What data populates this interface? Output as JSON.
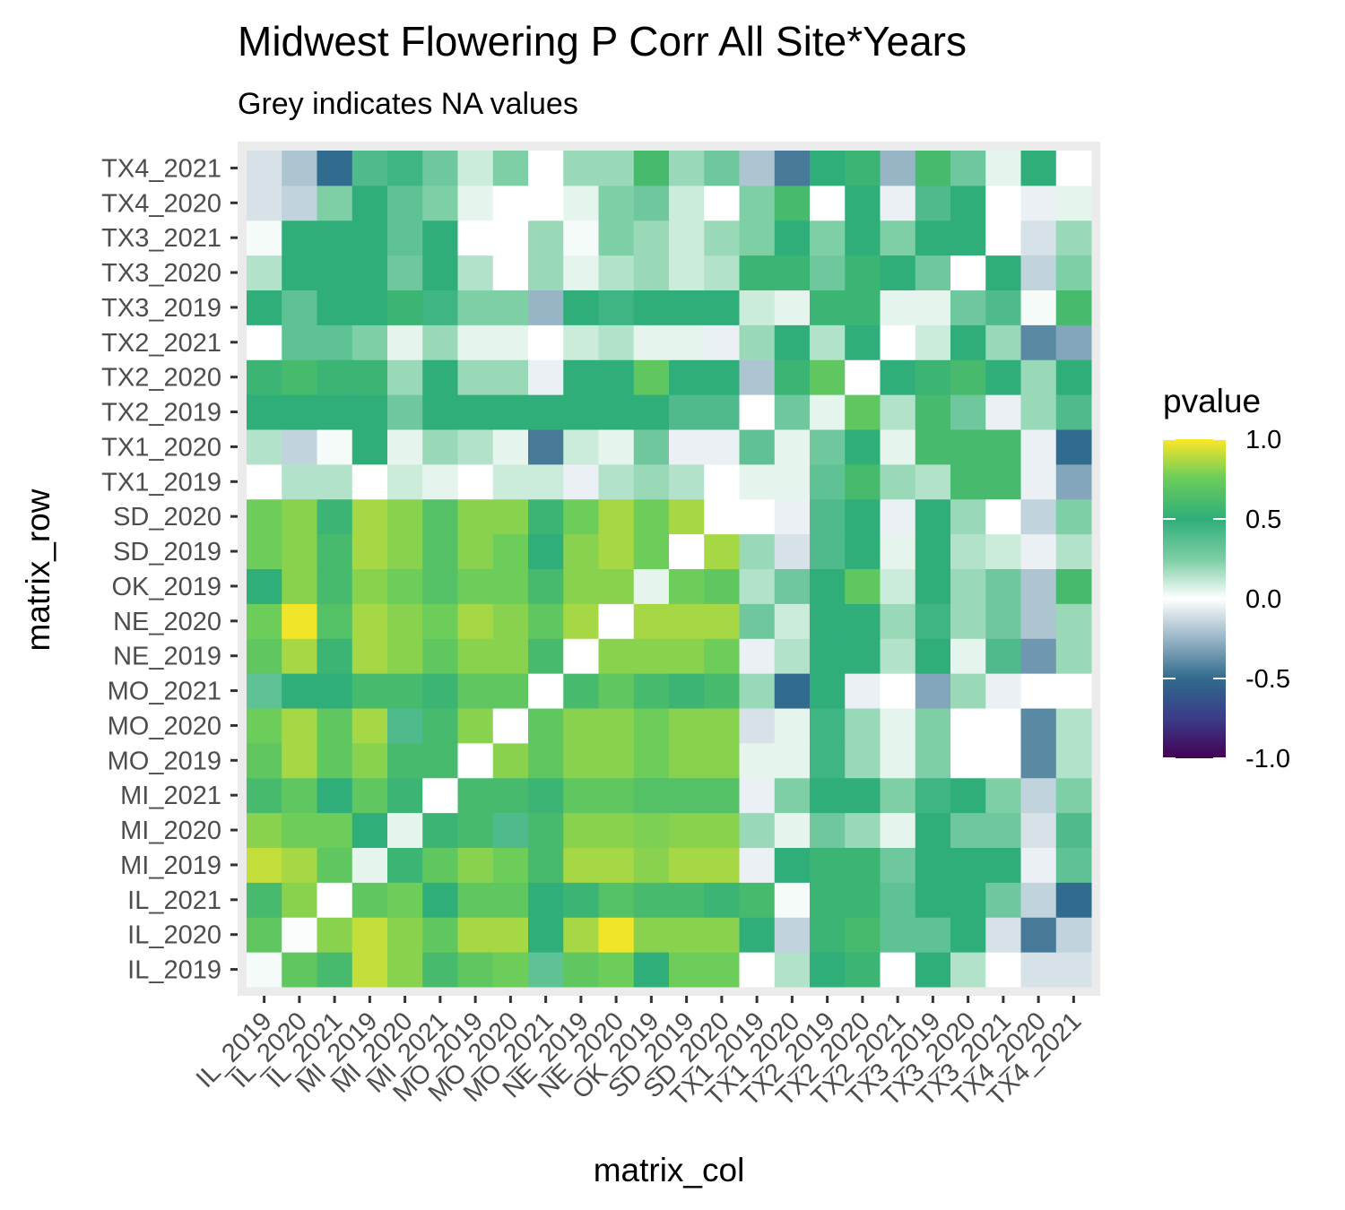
{
  "chart_data": {
    "type": "heatmap",
    "title": "Midwest Flowering P Corr All Site*Years",
    "subtitle": "Grey indicates NA values",
    "xlabel": "matrix_col",
    "ylabel": "matrix_row",
    "rows": [
      "IL_2019",
      "IL_2020",
      "IL_2021",
      "MI_2019",
      "MI_2020",
      "MI_2021",
      "MO_2019",
      "MO_2020",
      "MO_2021",
      "NE_2019",
      "NE_2020",
      "OK_2019",
      "SD_2019",
      "SD_2020",
      "TX1_2019",
      "TX1_2020",
      "TX2_2019",
      "TX2_2020",
      "TX2_2021",
      "TX3_2019",
      "TX3_2020",
      "TX3_2021",
      "TX4_2020",
      "TX4_2021"
    ],
    "columns": [
      "IL_2019",
      "IL_2020",
      "IL_2021",
      "MI_2019",
      "MI_2020",
      "MI_2021",
      "MO_2019",
      "MO_2020",
      "MO_2021",
      "NE_2019",
      "NE_2020",
      "OK_2019",
      "SD_2019",
      "SD_2020",
      "TX1_2019",
      "TX1_2020",
      "TX2_2019",
      "TX2_2020",
      "TX2_2021",
      "TX3_2019",
      "TX3_2020",
      "TX3_2021",
      "TX4_2020",
      "TX4_2021"
    ],
    "values": [
      [
        0.02,
        0.7,
        0.6,
        0.9,
        0.8,
        0.6,
        0.7,
        0.75,
        0.35,
        0.7,
        0.75,
        0.5,
        0.75,
        0.75,
        0.0,
        0.15,
        0.5,
        0.55,
        0.0,
        0.5,
        0.15,
        0.0,
        -0.1,
        -0.1
      ],
      [
        0.7,
        0.01,
        0.8,
        0.9,
        0.8,
        0.7,
        0.85,
        0.85,
        0.5,
        0.85,
        0.98,
        0.8,
        0.8,
        0.8,
        0.5,
        -0.15,
        0.55,
        0.6,
        0.35,
        0.35,
        0.5,
        -0.1,
        -0.45,
        -0.15
      ],
      [
        0.6,
        0.8,
        0.0,
        0.7,
        0.75,
        0.5,
        0.7,
        0.7,
        0.5,
        0.55,
        0.65,
        0.6,
        0.6,
        0.55,
        0.6,
        0.02,
        0.55,
        0.55,
        0.35,
        0.5,
        0.5,
        0.3,
        -0.15,
        -0.5
      ],
      [
        0.9,
        0.85,
        0.7,
        0.05,
        0.55,
        0.7,
        0.8,
        0.75,
        0.6,
        0.85,
        0.85,
        0.8,
        0.85,
        0.85,
        -0.05,
        0.5,
        0.55,
        0.55,
        0.3,
        0.5,
        0.5,
        0.5,
        -0.05,
        0.35
      ],
      [
        0.8,
        0.75,
        0.75,
        0.5,
        0.05,
        0.55,
        0.6,
        0.4,
        0.6,
        0.8,
        0.8,
        0.78,
        0.8,
        0.8,
        0.2,
        0.05,
        0.3,
        0.2,
        0.05,
        0.5,
        0.3,
        0.3,
        -0.1,
        0.4
      ],
      [
        0.6,
        0.7,
        0.5,
        0.7,
        0.55,
        0.0,
        0.6,
        0.6,
        0.55,
        0.7,
        0.7,
        0.65,
        0.65,
        0.65,
        -0.05,
        0.25,
        0.5,
        0.5,
        0.25,
        0.45,
        0.5,
        0.25,
        -0.15,
        0.25
      ],
      [
        0.7,
        0.85,
        0.7,
        0.8,
        0.6,
        0.6,
        0.0,
        0.8,
        0.7,
        0.8,
        0.8,
        0.75,
        0.8,
        0.8,
        0.05,
        0.05,
        0.45,
        0.2,
        0.05,
        0.25,
        0.0,
        0.0,
        -0.4,
        0.15
      ],
      [
        0.75,
        0.85,
        0.7,
        0.85,
        0.4,
        0.6,
        0.8,
        0.0,
        0.7,
        0.8,
        0.8,
        0.75,
        0.8,
        0.8,
        -0.1,
        0.05,
        0.45,
        0.2,
        0.05,
        0.25,
        0.0,
        0.0,
        -0.4,
        0.15
      ],
      [
        0.35,
        0.5,
        0.5,
        0.6,
        0.6,
        0.55,
        0.7,
        0.7,
        0.0,
        0.6,
        0.7,
        0.6,
        0.55,
        0.6,
        0.2,
        -0.5,
        0.5,
        -0.05,
        0.0,
        -0.3,
        0.2,
        -0.05,
        0.0,
        0.0
      ],
      [
        0.7,
        0.85,
        0.55,
        0.85,
        0.8,
        0.7,
        0.8,
        0.8,
        0.6,
        0.0,
        0.8,
        0.8,
        0.8,
        0.75,
        -0.05,
        0.15,
        0.5,
        0.5,
        0.15,
        0.5,
        0.05,
        0.4,
        -0.35,
        0.2
      ],
      [
        0.75,
        0.98,
        0.65,
        0.85,
        0.8,
        0.75,
        0.85,
        0.8,
        0.7,
        0.85,
        0.0,
        0.85,
        0.85,
        0.85,
        0.3,
        0.1,
        0.5,
        0.5,
        0.2,
        0.45,
        0.2,
        0.3,
        -0.2,
        0.2
      ],
      [
        0.5,
        0.8,
        0.6,
        0.8,
        0.75,
        0.65,
        0.75,
        0.75,
        0.6,
        0.8,
        0.8,
        0.05,
        0.75,
        0.7,
        0.15,
        0.3,
        0.5,
        0.7,
        0.1,
        0.5,
        0.2,
        0.3,
        -0.2,
        0.6
      ],
      [
        0.75,
        0.8,
        0.6,
        0.85,
        0.8,
        0.65,
        0.8,
        0.75,
        0.5,
        0.8,
        0.85,
        0.75,
        0.0,
        0.85,
        0.2,
        -0.1,
        0.4,
        0.5,
        0.05,
        0.5,
        0.15,
        0.1,
        -0.05,
        0.15
      ],
      [
        0.75,
        0.8,
        0.55,
        0.85,
        0.8,
        0.65,
        0.8,
        0.8,
        0.55,
        0.75,
        0.85,
        0.75,
        0.85,
        0.0,
        0.0,
        -0.05,
        0.4,
        0.5,
        -0.05,
        0.5,
        0.2,
        0.0,
        -0.15,
        0.25
      ],
      [
        0.0,
        0.15,
        0.15,
        0.0,
        0.1,
        0.05,
        0.0,
        0.1,
        0.1,
        -0.05,
        0.15,
        0.2,
        0.15,
        0.0,
        0.05,
        0.05,
        0.35,
        0.6,
        0.2,
        0.15,
        0.6,
        0.6,
        -0.05,
        -0.3
      ],
      [
        0.15,
        -0.15,
        0.02,
        0.5,
        0.05,
        0.2,
        0.15,
        0.05,
        -0.45,
        0.1,
        0.05,
        0.3,
        -0.05,
        -0.05,
        0.35,
        0.05,
        0.3,
        0.5,
        0.05,
        0.6,
        0.6,
        0.6,
        -0.05,
        -0.5
      ],
      [
        0.5,
        0.5,
        0.5,
        0.5,
        0.3,
        0.5,
        0.5,
        0.5,
        0.5,
        0.5,
        0.5,
        0.5,
        0.4,
        0.4,
        0.0,
        0.3,
        0.05,
        0.7,
        0.15,
        0.6,
        0.3,
        -0.05,
        0.2,
        0.4
      ],
      [
        0.55,
        0.6,
        0.55,
        0.55,
        0.2,
        0.5,
        0.2,
        0.2,
        -0.05,
        0.5,
        0.5,
        0.7,
        0.5,
        0.5,
        -0.2,
        0.55,
        0.7,
        0.0,
        0.5,
        0.55,
        0.6,
        0.5,
        0.2,
        0.5
      ],
      [
        0.0,
        0.35,
        0.35,
        0.25,
        0.05,
        0.2,
        0.05,
        0.05,
        0.0,
        0.1,
        0.15,
        0.05,
        0.05,
        -0.05,
        0.2,
        0.5,
        0.15,
        0.5,
        0.0,
        0.1,
        0.5,
        0.2,
        -0.4,
        -0.3
      ],
      [
        0.5,
        0.35,
        0.5,
        0.5,
        0.55,
        0.45,
        0.25,
        0.25,
        -0.25,
        0.5,
        0.45,
        0.5,
        0.5,
        0.5,
        0.1,
        0.05,
        0.55,
        0.55,
        0.05,
        0.05,
        0.3,
        0.4,
        0.02,
        0.6
      ],
      [
        0.15,
        0.5,
        0.5,
        0.5,
        0.3,
        0.5,
        0.15,
        0.0,
        0.2,
        0.05,
        0.15,
        0.2,
        0.1,
        0.15,
        0.55,
        0.55,
        0.3,
        0.55,
        0.5,
        0.3,
        0.0,
        0.5,
        -0.15,
        0.25
      ],
      [
        0.02,
        0.5,
        0.5,
        0.5,
        0.35,
        0.5,
        0.0,
        0.0,
        0.2,
        0.02,
        0.25,
        0.2,
        0.1,
        0.2,
        0.25,
        0.5,
        0.25,
        0.5,
        0.25,
        0.5,
        0.5,
        0.0,
        -0.1,
        0.2
      ],
      [
        -0.1,
        -0.15,
        0.25,
        0.5,
        0.35,
        0.25,
        0.05,
        0.0,
        0.0,
        0.05,
        0.25,
        0.3,
        0.1,
        0.0,
        0.25,
        0.6,
        0.0,
        0.5,
        -0.05,
        0.4,
        0.5,
        0.0,
        -0.05,
        0.05
      ],
      [
        -0.1,
        -0.2,
        -0.5,
        0.4,
        0.45,
        0.3,
        0.1,
        0.25,
        0.0,
        0.2,
        0.2,
        0.6,
        0.2,
        0.3,
        -0.2,
        -0.45,
        0.5,
        0.55,
        -0.25,
        0.6,
        0.3,
        0.05,
        0.5,
        0.0
      ]
    ],
    "legend": {
      "title": "pvalue",
      "ticks": [
        "1.0",
        "0.5",
        "0.0",
        "-0.5",
        "-1.0"
      ],
      "range": [
        -1,
        1
      ],
      "position": "right"
    },
    "colors": {
      "panel_background": "#ebebeb",
      "na_value": "#808080",
      "scale": [
        "#440154",
        "#3b528b",
        "#ffffff",
        "#21908c",
        "#5ec962",
        "#fde725"
      ]
    }
  }
}
